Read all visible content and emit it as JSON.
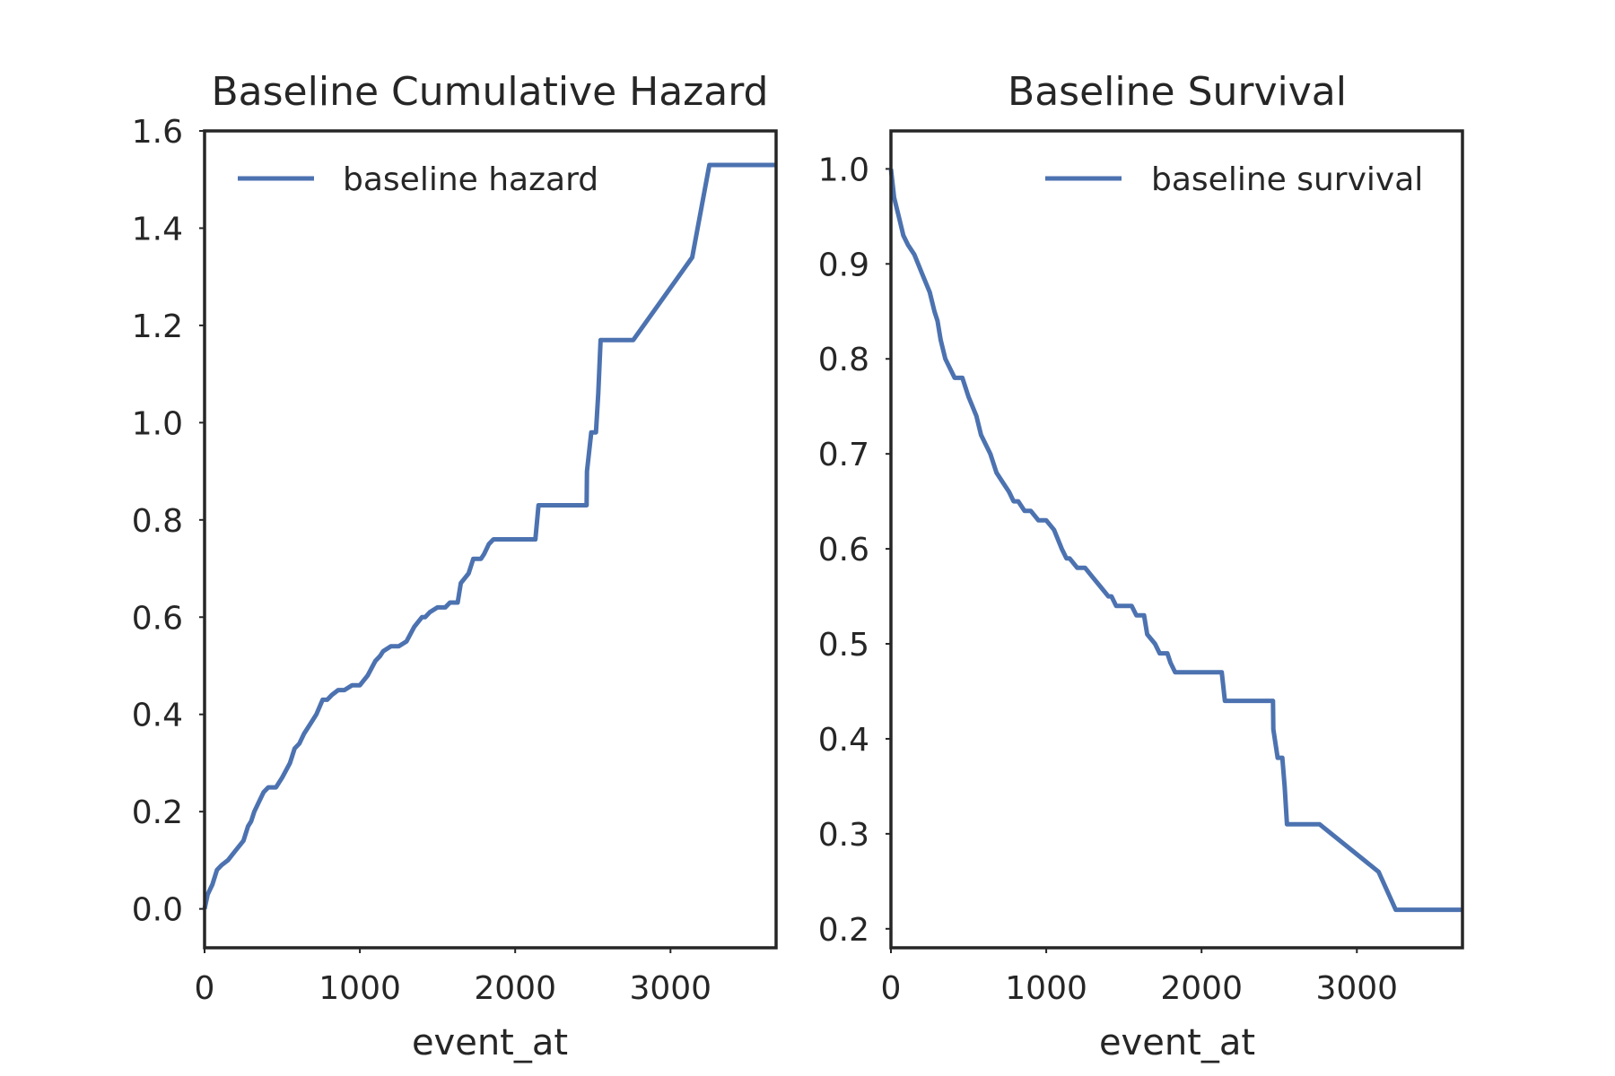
{
  "chart_data": [
    {
      "type": "line",
      "title": "Baseline Cumulative Hazard",
      "xlabel": "event_at",
      "ylabel": "",
      "xlim": [
        0,
        3680
      ],
      "ylim": [
        -0.08,
        1.6
      ],
      "xticks": [
        0,
        1000,
        2000,
        3000
      ],
      "xtick_labels": [
        "0",
        "1000",
        "2000",
        "3000"
      ],
      "yticks": [
        0.0,
        0.2,
        0.4,
        0.6,
        0.8,
        1.0,
        1.2,
        1.4,
        1.6
      ],
      "ytick_labels": [
        "0.0",
        "0.2",
        "0.4",
        "0.6",
        "0.8",
        "1.0",
        "1.2",
        "1.4",
        "1.6"
      ],
      "grid": false,
      "legend_position": "top-left",
      "series": [
        {
          "name": "baseline hazard",
          "color": "#4c72b0",
          "x": [
            0,
            20,
            50,
            80,
            110,
            150,
            200,
            250,
            280,
            300,
            320,
            350,
            380,
            410,
            430,
            460,
            500,
            550,
            580,
            610,
            640,
            680,
            720,
            760,
            790,
            820,
            860,
            900,
            950,
            1000,
            1050,
            1100,
            1130,
            1150,
            1200,
            1250,
            1300,
            1350,
            1400,
            1420,
            1450,
            1500,
            1550,
            1580,
            1630,
            1650,
            1700,
            1730,
            1780,
            1800,
            1830,
            1860,
            1900,
            2000,
            2130,
            2150,
            2200,
            2300,
            2460,
            2462,
            2490,
            2520,
            2535,
            2550,
            2560,
            2700,
            2760,
            3140,
            3250,
            3300,
            3680
          ],
          "y": [
            0.0,
            0.03,
            0.05,
            0.08,
            0.09,
            0.1,
            0.12,
            0.14,
            0.17,
            0.18,
            0.2,
            0.22,
            0.24,
            0.25,
            0.25,
            0.25,
            0.27,
            0.3,
            0.33,
            0.34,
            0.36,
            0.38,
            0.4,
            0.43,
            0.43,
            0.44,
            0.45,
            0.45,
            0.46,
            0.46,
            0.48,
            0.51,
            0.52,
            0.53,
            0.54,
            0.54,
            0.55,
            0.58,
            0.6,
            0.6,
            0.61,
            0.62,
            0.62,
            0.63,
            0.63,
            0.67,
            0.69,
            0.72,
            0.72,
            0.73,
            0.75,
            0.76,
            0.76,
            0.76,
            0.76,
            0.83,
            0.83,
            0.83,
            0.83,
            0.9,
            0.98,
            0.98,
            1.06,
            1.17,
            1.17,
            1.17,
            1.17,
            1.34,
            1.53,
            1.53,
            1.53
          ]
        }
      ]
    },
    {
      "type": "line",
      "title": "Baseline Survival",
      "xlabel": "event_at",
      "ylabel": "",
      "xlim": [
        0,
        3680
      ],
      "ylim": [
        0.18,
        1.04
      ],
      "xticks": [
        0,
        1000,
        2000,
        3000
      ],
      "xtick_labels": [
        "0",
        "1000",
        "2000",
        "3000"
      ],
      "yticks": [
        0.2,
        0.3,
        0.4,
        0.5,
        0.6,
        0.7,
        0.8,
        0.9,
        1.0
      ],
      "ytick_labels": [
        "0.2",
        "0.3",
        "0.4",
        "0.5",
        "0.6",
        "0.7",
        "0.8",
        "0.9",
        "1.0"
      ],
      "grid": false,
      "legend_position": "top-right",
      "series": [
        {
          "name": "baseline survival",
          "color": "#4c72b0",
          "x": [
            0,
            20,
            50,
            80,
            110,
            150,
            200,
            250,
            280,
            300,
            320,
            350,
            380,
            410,
            430,
            460,
            500,
            550,
            580,
            610,
            640,
            680,
            720,
            760,
            790,
            820,
            860,
            900,
            950,
            1000,
            1050,
            1100,
            1130,
            1150,
            1200,
            1250,
            1300,
            1350,
            1400,
            1420,
            1450,
            1500,
            1550,
            1580,
            1630,
            1650,
            1700,
            1730,
            1780,
            1800,
            1830,
            1860,
            1900,
            2000,
            2130,
            2150,
            2200,
            2300,
            2460,
            2462,
            2490,
            2520,
            2535,
            2550,
            2560,
            2700,
            2760,
            3140,
            3250,
            3300,
            3680
          ],
          "y": [
            1.0,
            0.97,
            0.95,
            0.93,
            0.92,
            0.91,
            0.89,
            0.87,
            0.85,
            0.84,
            0.82,
            0.8,
            0.79,
            0.78,
            0.78,
            0.78,
            0.76,
            0.74,
            0.72,
            0.71,
            0.7,
            0.68,
            0.67,
            0.66,
            0.65,
            0.65,
            0.64,
            0.64,
            0.63,
            0.63,
            0.62,
            0.6,
            0.59,
            0.59,
            0.58,
            0.58,
            0.57,
            0.56,
            0.55,
            0.55,
            0.54,
            0.54,
            0.54,
            0.53,
            0.53,
            0.51,
            0.5,
            0.49,
            0.49,
            0.48,
            0.47,
            0.47,
            0.47,
            0.47,
            0.47,
            0.44,
            0.44,
            0.44,
            0.44,
            0.41,
            0.38,
            0.38,
            0.35,
            0.31,
            0.31,
            0.31,
            0.31,
            0.26,
            0.22,
            0.22,
            0.22
          ]
        }
      ]
    }
  ]
}
